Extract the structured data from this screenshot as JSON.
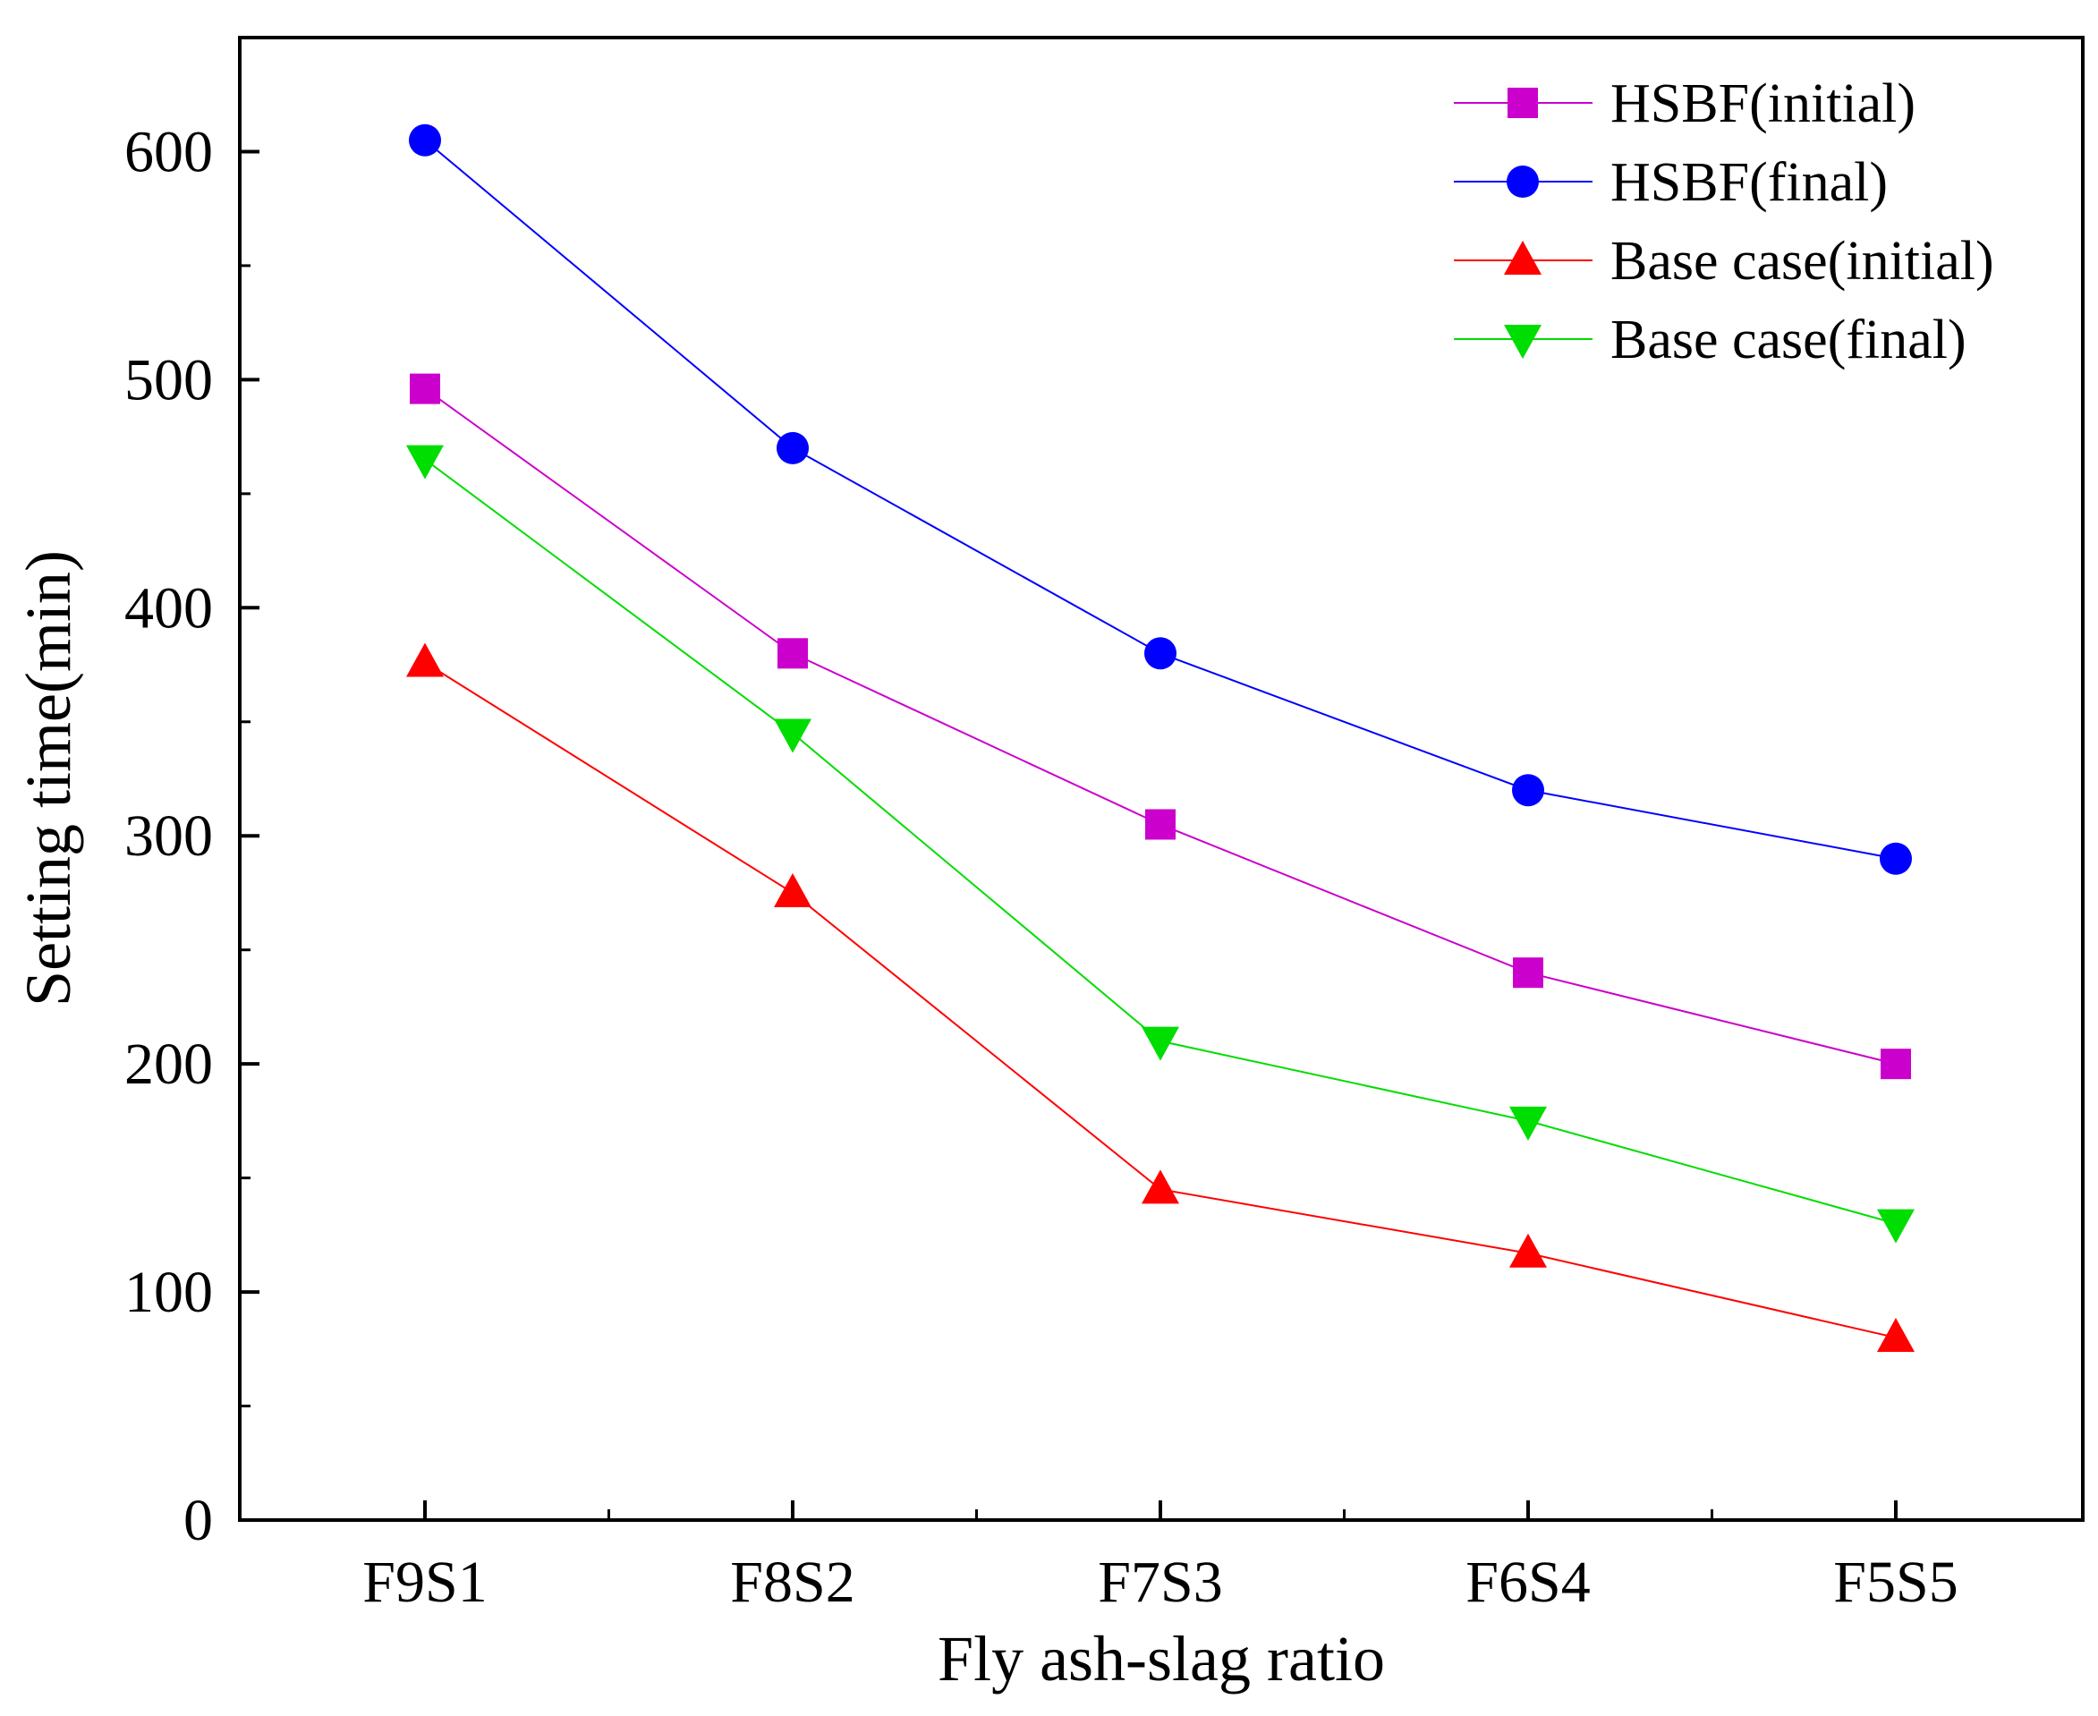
{
  "chart_data": {
    "type": "line",
    "title": "",
    "xlabel": "Fly ash-slag ratio",
    "ylabel": "Setting time(min)",
    "categories": [
      "F9S1",
      "F8S2",
      "F7S3",
      "F6S4",
      "F5S5"
    ],
    "ylim": [
      0,
      650
    ],
    "yticks": [
      0,
      100,
      200,
      300,
      400,
      500,
      600
    ],
    "grid": false,
    "legend_position": "top-right",
    "series": [
      {
        "name": "HSBF(initial)",
        "values": [
          496,
          380,
          305,
          240,
          200
        ],
        "color": "#cc00cc",
        "marker": "square"
      },
      {
        "name": "HSBF(final)",
        "values": [
          605,
          470,
          380,
          320,
          290
        ],
        "color": "#0000ff",
        "marker": "circle"
      },
      {
        "name": "Base case(initial)",
        "values": [
          376,
          275,
          145,
          117,
          80
        ],
        "color": "#ff0000",
        "marker": "triangle-up"
      },
      {
        "name": "Base case(final)",
        "values": [
          465,
          345,
          210,
          175,
          130
        ],
        "color": "#00dd00",
        "marker": "triangle-down"
      }
    ]
  }
}
